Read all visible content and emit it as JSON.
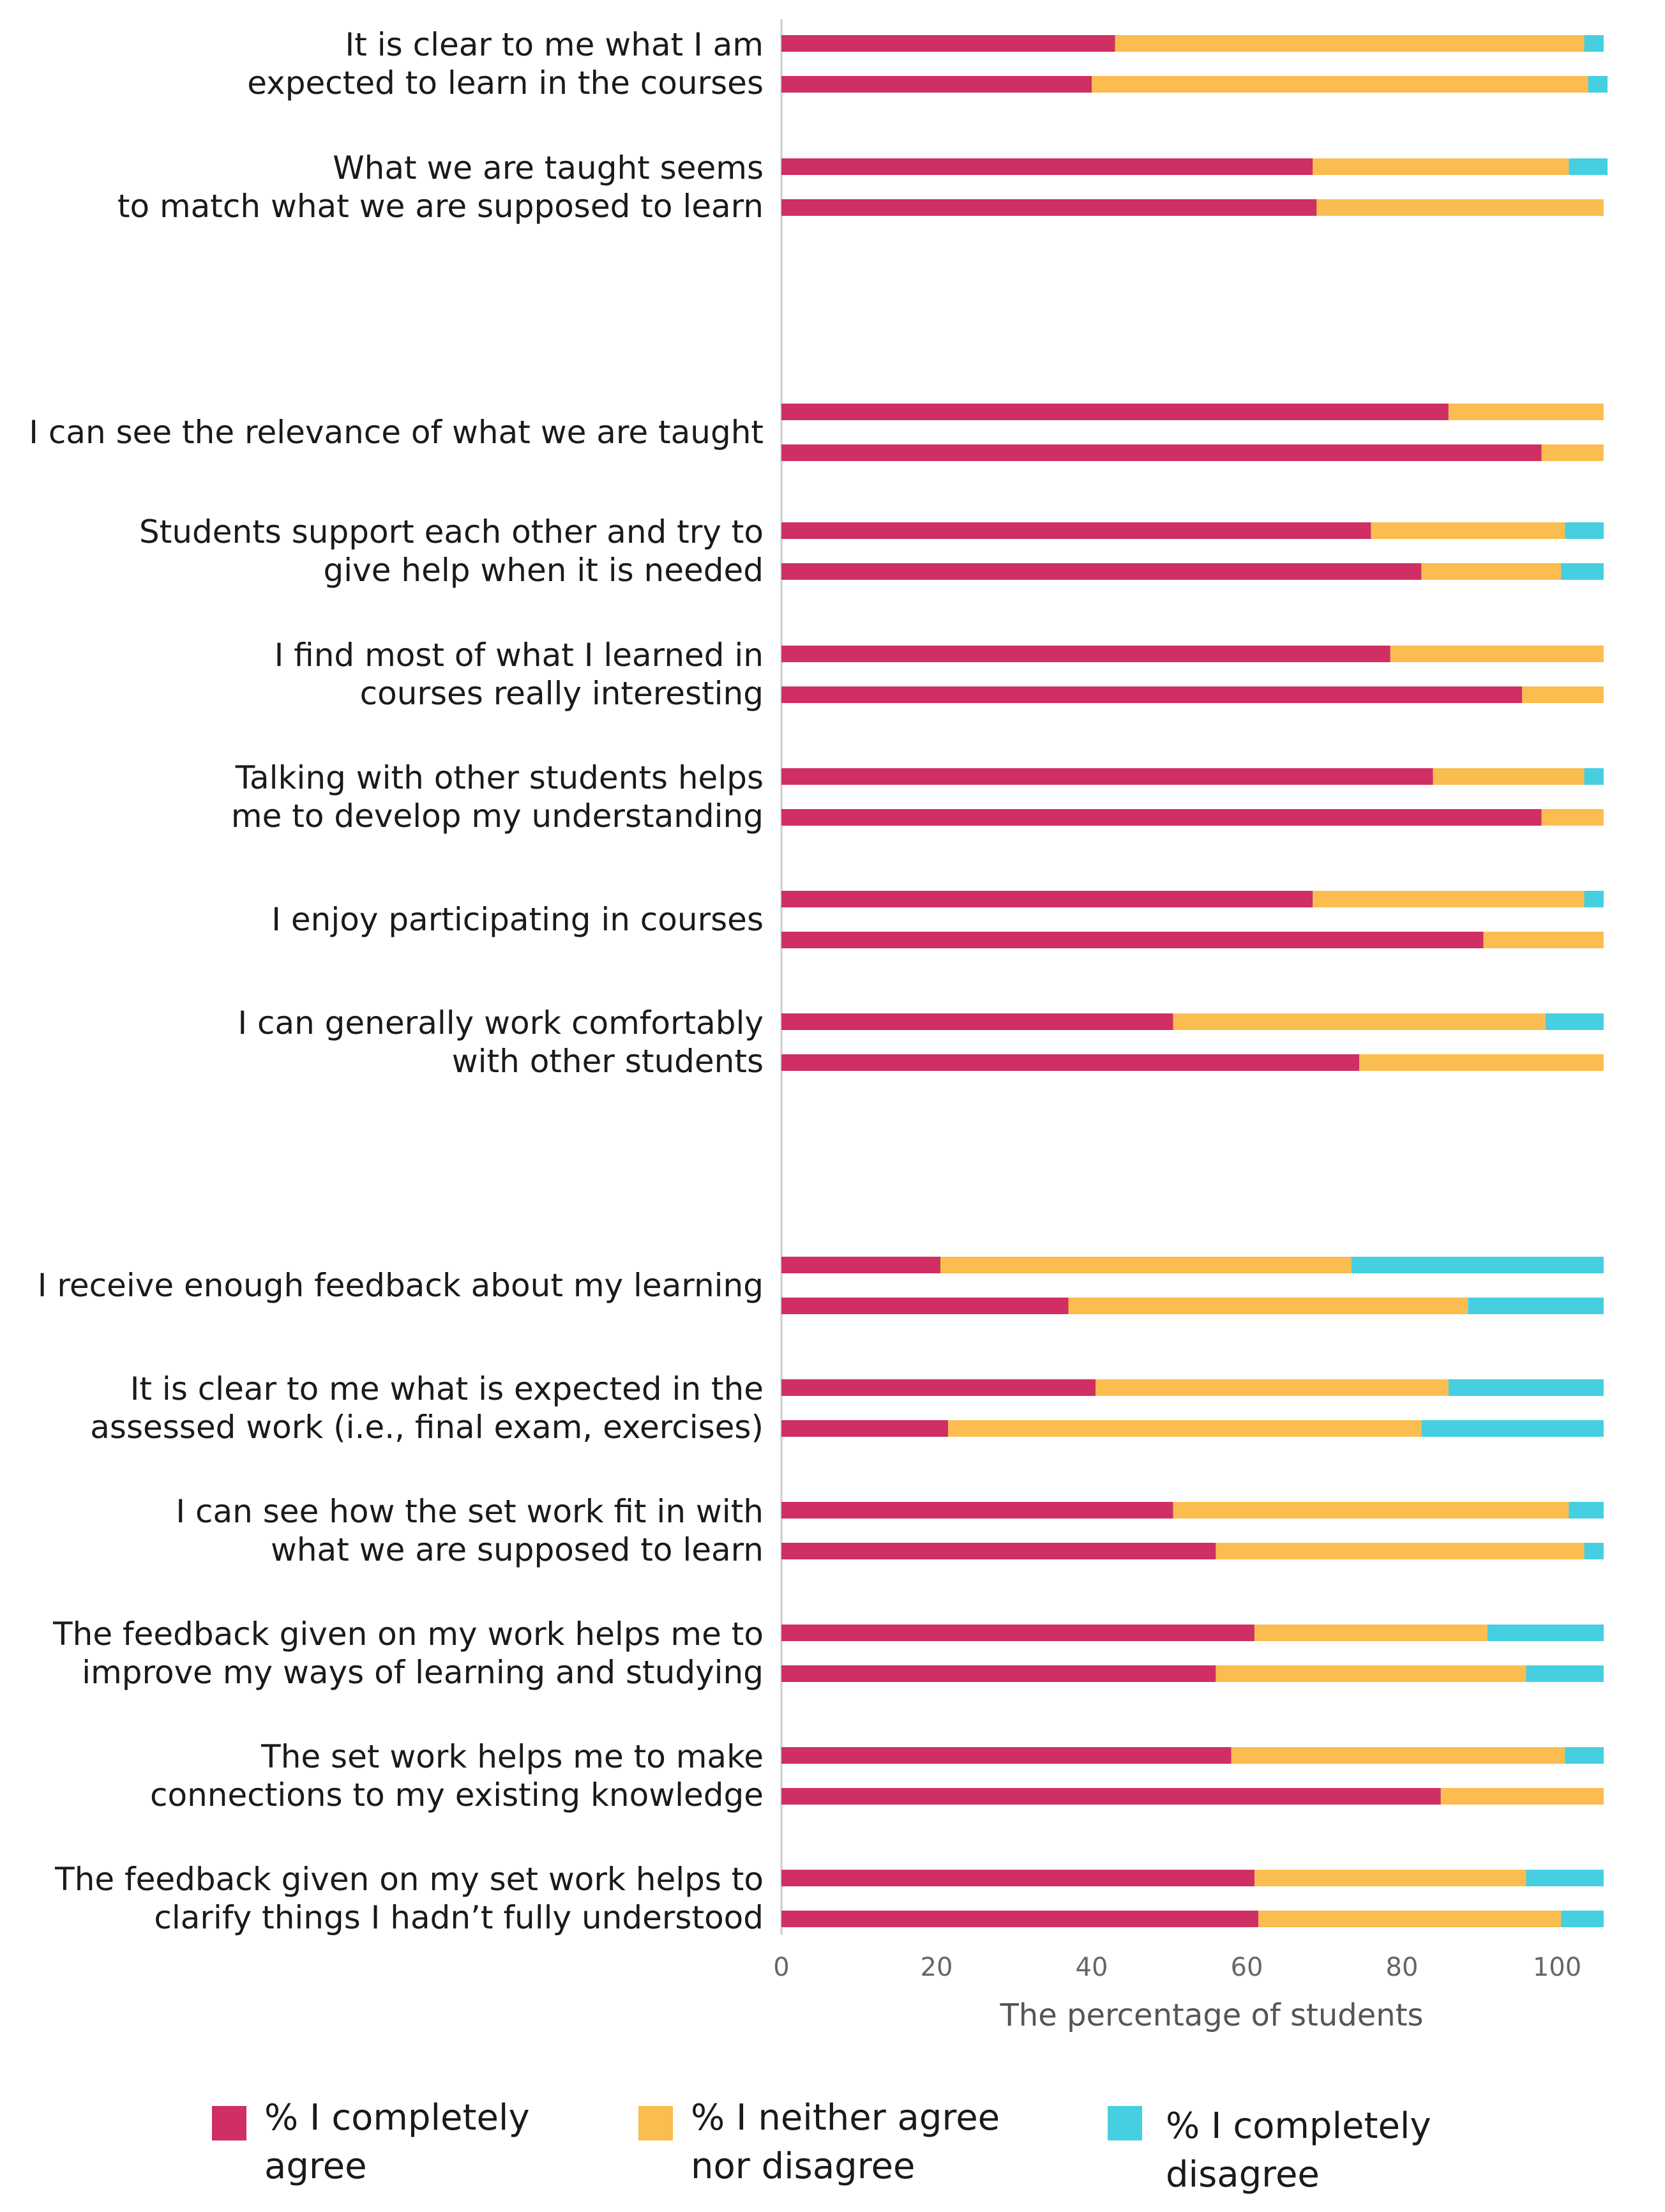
{
  "chart_data": {
    "type": "bar",
    "orientation": "horizontal",
    "stacked": true,
    "xlabel": "The percentage of students",
    "xlim": [
      0,
      106
    ],
    "xticks": [
      0,
      20,
      40,
      60,
      80,
      100
    ],
    "series_names": [
      "% I completely agree",
      "% I neither agree nor disagree",
      "% I completely disagree"
    ],
    "colors": [
      "#cf2f63",
      "#fbbd4f",
      "#45cfe0"
    ],
    "legend": [
      {
        "lines": [
          "% I completely",
          "agree"
        ]
      },
      {
        "lines": [
          "% I neither agree",
          "nor disagree"
        ]
      },
      {
        "lines": [
          "% I completely",
          "disagree"
        ]
      }
    ],
    "items": [
      {
        "label": [
          "It is clear to me what I am",
          "expected to learn in the courses"
        ],
        "bars": [
          [
            43,
            60.5,
            2.5
          ],
          [
            40,
            64,
            2.5
          ]
        ]
      },
      {
        "label": [
          "What we are taught seems",
          "to match what we are supposed to learn"
        ],
        "bars": [
          [
            68.5,
            33,
            5
          ],
          [
            69,
            37,
            0
          ]
        ]
      },
      {
        "label": [
          "I can see the relevance of what we are taught"
        ],
        "bars": [
          [
            86,
            20,
            0
          ],
          [
            98,
            8,
            0
          ]
        ]
      },
      {
        "label": [
          "Students support each other and try to",
          "give help when it is needed"
        ],
        "bars": [
          [
            76,
            25,
            5
          ],
          [
            82.5,
            18,
            5.5
          ]
        ]
      },
      {
        "label": [
          "I find most of what I learned in",
          "courses really interesting"
        ],
        "bars": [
          [
            78.5,
            27.5,
            0
          ],
          [
            95.5,
            10.5,
            0
          ]
        ]
      },
      {
        "label": [
          "Talking with other students helps",
          "me to develop my understanding"
        ],
        "bars": [
          [
            84,
            19.5,
            2.5
          ],
          [
            98,
            8,
            0
          ]
        ]
      },
      {
        "label": [
          "I enjoy participating in courses"
        ],
        "bars": [
          [
            68.5,
            35,
            2.5
          ],
          [
            90.5,
            15.5,
            0
          ]
        ]
      },
      {
        "label": [
          "I can generally work comfortably",
          "with other students"
        ],
        "bars": [
          [
            50.5,
            48,
            7.5
          ],
          [
            74.5,
            31.5,
            0
          ]
        ]
      },
      {
        "label": [
          "I receive enough feedback about my learning"
        ],
        "bars": [
          [
            20.5,
            53,
            32.5
          ],
          [
            37,
            51.5,
            17.5
          ]
        ]
      },
      {
        "label": [
          "It is clear to me what is expected in the",
          "assessed work (i.e., final exam, exercises)"
        ],
        "bars": [
          [
            40.5,
            45.5,
            20
          ],
          [
            21.5,
            61,
            23.5
          ]
        ]
      },
      {
        "label": [
          "I can see how the set work fit in with",
          "what we are supposed to learn"
        ],
        "bars": [
          [
            50.5,
            51,
            4.5
          ],
          [
            56,
            47.5,
            2.5
          ]
        ]
      },
      {
        "label": [
          "The feedback given on my work helps me to",
          "improve my ways of learning and studying"
        ],
        "bars": [
          [
            61,
            30,
            15
          ],
          [
            56,
            40,
            10
          ]
        ]
      },
      {
        "label": [
          "The set work helps me to make",
          "connections to my existing knowledge"
        ],
        "bars": [
          [
            58,
            43,
            5
          ],
          [
            85,
            21,
            0
          ]
        ]
      },
      {
        "label": [
          "The feedback given on my set work helps to",
          "clarify things I hadn’t fully understood"
        ],
        "bars": [
          [
            61,
            35,
            10
          ],
          [
            61.5,
            39,
            5.5
          ]
        ]
      }
    ]
  }
}
